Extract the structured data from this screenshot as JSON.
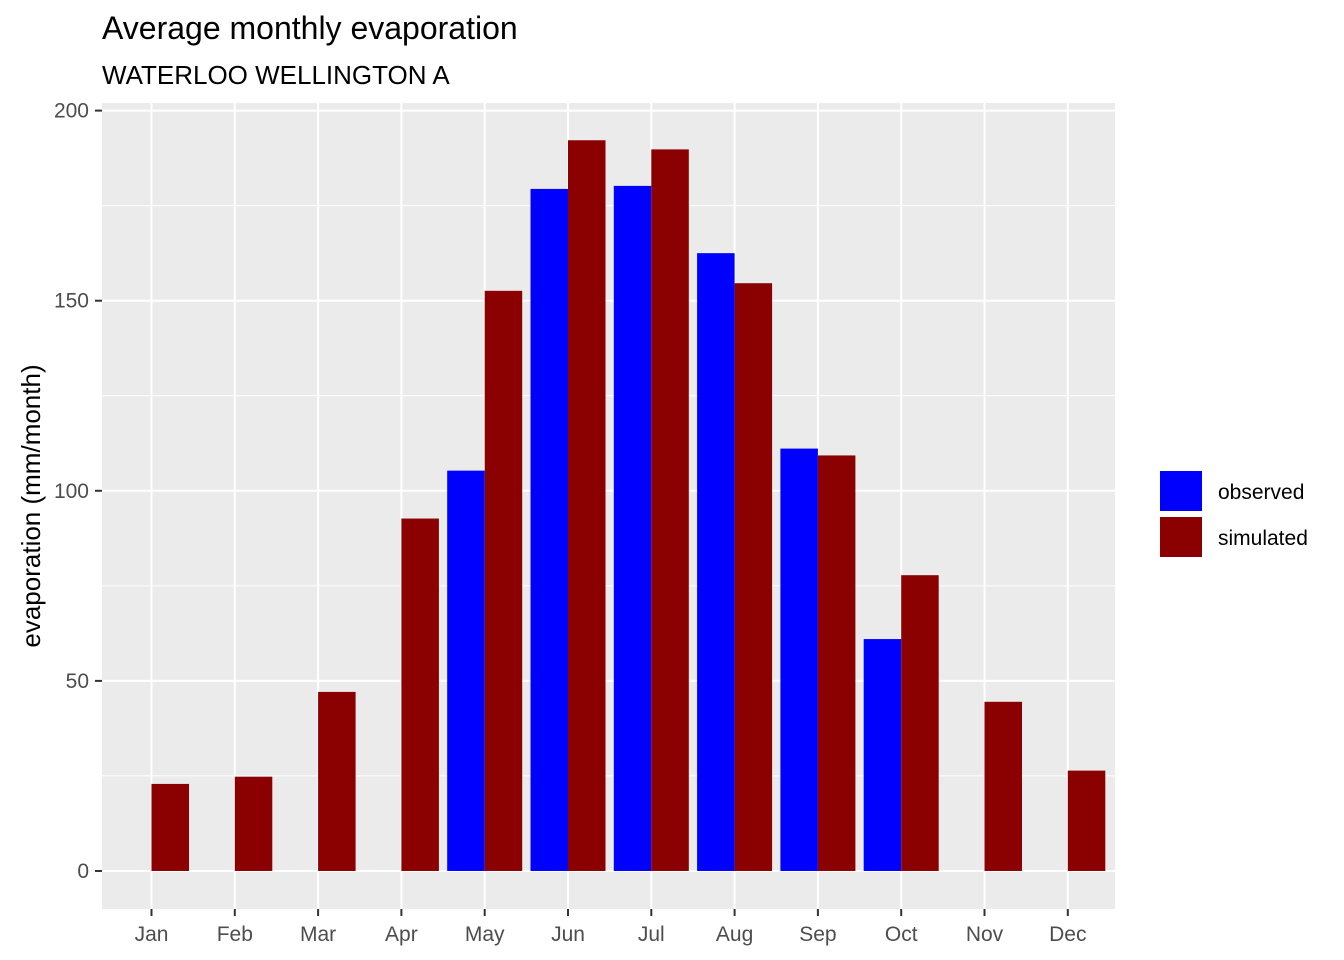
{
  "chart_data": {
    "type": "bar",
    "title": "Average monthly evaporation",
    "subtitle": "WATERLOO WELLINGTON A",
    "xlabel": "",
    "ylabel": "evaporation (mm/month)",
    "ylim": [
      -10,
      202
    ],
    "yticks": [
      0,
      50,
      100,
      150,
      200
    ],
    "grid": true,
    "legend_position": "right",
    "categories": [
      "Jan",
      "Feb",
      "Mar",
      "Apr",
      "May",
      "Jun",
      "Jul",
      "Aug",
      "Sep",
      "Oct",
      "Nov",
      "Dec"
    ],
    "series": [
      {
        "name": "observed",
        "color": "#0000ff",
        "values": [
          null,
          null,
          null,
          null,
          105.3,
          179.4,
          180.2,
          162.5,
          111.1,
          61.0,
          null,
          null
        ]
      },
      {
        "name": "simulated",
        "color": "#8b0000",
        "values": [
          22.9,
          24.8,
          47.1,
          92.7,
          152.6,
          192.2,
          189.8,
          154.6,
          109.3,
          77.8,
          44.5,
          26.4
        ]
      }
    ]
  }
}
